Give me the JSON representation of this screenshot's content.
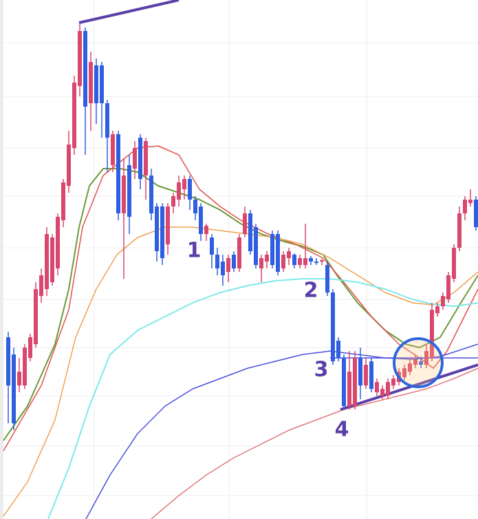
{
  "chart_data": {
    "type": "candlestick",
    "xlim": [
      0,
      695
    ],
    "ylim": [
      0,
      754
    ],
    "xticks": [
      137,
      333,
      533
    ],
    "yticks": [
      34,
      106,
      179,
      249,
      319,
      394,
      469,
      539,
      614,
      692
    ],
    "grid": true,
    "up_color": "#d9466e",
    "down_color": "#2f5fe0",
    "x": [
      12,
      20,
      28,
      36,
      44,
      52,
      60,
      68,
      76,
      84,
      92,
      100,
      108,
      116,
      124,
      132,
      140,
      148,
      156,
      164,
      172,
      180,
      188,
      196,
      204,
      212,
      220,
      228,
      236,
      244,
      252,
      260,
      268,
      276,
      284,
      292,
      300,
      308,
      316,
      324,
      332,
      340,
      348,
      356,
      364,
      372,
      380,
      388,
      396,
      404,
      412,
      420,
      428,
      436,
      444,
      452,
      460,
      468,
      476,
      484,
      492,
      500,
      508,
      516,
      524,
      532,
      540,
      548,
      556,
      564,
      572,
      580,
      588,
      596,
      604,
      612,
      620,
      628,
      636,
      644,
      652,
      660,
      668,
      676,
      684,
      692
    ],
    "ohlc": [
      [
        264,
        272,
        139,
        194
      ],
      [
        239,
        249,
        129,
        139
      ],
      [
        194,
        234,
        184,
        214
      ],
      [
        194,
        254,
        189,
        249
      ],
      [
        234,
        269,
        229,
        264
      ],
      [
        254,
        344,
        249,
        334
      ],
      [
        324,
        364,
        314,
        354
      ],
      [
        334,
        424,
        324,
        414
      ],
      [
        344,
        414,
        339,
        409
      ],
      [
        364,
        444,
        354,
        439
      ],
      [
        434,
        494,
        424,
        489
      ],
      [
        484,
        564,
        474,
        544
      ],
      [
        539,
        644,
        529,
        634
      ],
      [
        629,
        719,
        614,
        709
      ],
      [
        709,
        714,
        529,
        599
      ],
      [
        604,
        679,
        564,
        664
      ],
      [
        659,
        669,
        574,
        604
      ],
      [
        659,
        664,
        554,
        604
      ],
      [
        604,
        609,
        504,
        554
      ],
      [
        514,
        564,
        504,
        559
      ],
      [
        559,
        564,
        434,
        444
      ],
      [
        444,
        524,
        349,
        499
      ],
      [
        514,
        529,
        414,
        439
      ],
      [
        509,
        549,
        494,
        539
      ],
      [
        554,
        559,
        479,
        494
      ],
      [
        499,
        554,
        464,
        549
      ],
      [
        499,
        509,
        434,
        444
      ],
      [
        454,
        459,
        374,
        389
      ],
      [
        454,
        459,
        369,
        379
      ],
      [
        399,
        459,
        384,
        454
      ],
      [
        454,
        474,
        444,
        469
      ],
      [
        464,
        499,
        454,
        489
      ],
      [
        479,
        499,
        464,
        494
      ],
      [
        494,
        499,
        449,
        464
      ],
      [
        464,
        469,
        434,
        444
      ],
      [
        454,
        459,
        404,
        414
      ],
      [
        414,
        429,
        404,
        426
      ],
      [
        409,
        414,
        364,
        384
      ],
      [
        384,
        394,
        354,
        364
      ],
      [
        374,
        384,
        339,
        354
      ],
      [
        359,
        384,
        344,
        379
      ],
      [
        384,
        389,
        359,
        364
      ],
      [
        364,
        414,
        359,
        409
      ],
      [
        414,
        454,
        409,
        444
      ],
      [
        444,
        449,
        384,
        389
      ],
      [
        424,
        429,
        364,
        369
      ],
      [
        364,
        384,
        344,
        379
      ],
      [
        374,
        389,
        364,
        384
      ],
      [
        414,
        419,
        364,
        369
      ],
      [
        414,
        419,
        354,
        359
      ],
      [
        364,
        389,
        359,
        384
      ],
      [
        379,
        394,
        369,
        389
      ],
      [
        384,
        386,
        364,
        369
      ],
      [
        369,
        384,
        364,
        379
      ],
      [
        369,
        429,
        364,
        379
      ],
      [
        379,
        382,
        369,
        374
      ],
      [
        374,
        379,
        369,
        372
      ],
      [
        374,
        378,
        369,
        376
      ],
      [
        369,
        374,
        324,
        329
      ],
      [
        329,
        334,
        224,
        229
      ],
      [
        259,
        264,
        229,
        234
      ],
      [
        234,
        239,
        159,
        164
      ],
      [
        164,
        244,
        159,
        214
      ],
      [
        164,
        244,
        159,
        234
      ],
      [
        234,
        249,
        174,
        194
      ],
      [
        194,
        234,
        189,
        224
      ],
      [
        229,
        234,
        184,
        189
      ],
      [
        184,
        204,
        179,
        199
      ],
      [
        179,
        194,
        174,
        189
      ],
      [
        179,
        204,
        174,
        199
      ],
      [
        194,
        209,
        189,
        204
      ],
      [
        199,
        219,
        194,
        214
      ],
      [
        206,
        224,
        202,
        219
      ],
      [
        214,
        234,
        209,
        226
      ],
      [
        224,
        239,
        219,
        232
      ],
      [
        229,
        236,
        219,
        224
      ],
      [
        224,
        254,
        219,
        244
      ],
      [
        234,
        314,
        229,
        304
      ],
      [
        299,
        314,
        294,
        309
      ],
      [
        309,
        329,
        304,
        324
      ],
      [
        319,
        359,
        314,
        354
      ],
      [
        349,
        399,
        344,
        394
      ],
      [
        394,
        454,
        389,
        444
      ],
      [
        444,
        469,
        434,
        464
      ],
      [
        459,
        479,
        454,
        464
      ],
      [
        464,
        469,
        419,
        424
      ]
    ],
    "lines": [
      {
        "color": "#6a9a3a",
        "width": 2,
        "x": [
          5,
          40,
          80,
          100,
          115,
          130,
          150,
          175,
          200,
          230,
          260,
          290,
          320,
          350,
          380,
          410,
          440,
          470,
          490,
          520,
          560,
          590,
          610,
          640,
          670,
          695
        ],
        "values": [
          114,
          164,
          254,
          334,
          424,
          484,
          509,
          509,
          504,
          484,
          474,
          464,
          449,
          429,
          414,
          404,
          396,
          384,
          354,
          314,
          274,
          254,
          249,
          264,
          314,
          354
        ]
      },
      {
        "color": "#e0504a",
        "width": 1.5,
        "x": [
          5,
          60,
          100,
          120,
          150,
          200,
          230,
          260,
          290,
          320,
          350,
          390,
          430,
          470,
          500,
          540,
          580,
          610,
          630,
          650,
          675,
          695
        ],
        "values": [
          99,
          194,
          304,
          424,
          499,
          539,
          542,
          529,
          479,
          454,
          434,
          414,
          399,
          379,
          344,
          294,
          254,
          234,
          219,
          244,
          294,
          334
        ]
      },
      {
        "color": "#f0a050",
        "width": 1.5,
        "x": [
          5,
          40,
          80,
          110,
          140,
          170,
          200,
          240,
          280,
          320,
          360,
          400,
          440,
          480,
          520,
          560,
          600,
          630,
          660,
          695
        ],
        "values": [
          4,
          54,
          144,
          264,
          334,
          384,
          409,
          424,
          424,
          419,
          414,
          409,
          399,
          379,
          354,
          329,
          314,
          311,
          329,
          359
        ]
      },
      {
        "color": "#7fe8ea",
        "width": 2,
        "x": [
          70,
          100,
          130,
          160,
          200,
          240,
          280,
          320,
          360,
          400,
          440,
          480,
          520,
          560,
          600,
          630,
          660,
          695
        ],
        "values": [
          0,
          74,
          164,
          239,
          274,
          294,
          314,
          329,
          339,
          346,
          349,
          349,
          344,
          334,
          319,
          312,
          309,
          314
        ]
      },
      {
        "color": "#4a4ee0",
        "width": 1.5,
        "x": [
          125,
          160,
          200,
          240,
          280,
          320,
          360,
          400,
          440,
          480,
          520,
          560,
          600,
          640,
          695
        ],
        "values": [
          0,
          64,
          124,
          164,
          189,
          204,
          219,
          229,
          239,
          244,
          239,
          234,
          232,
          236,
          254
        ]
      },
      {
        "color": "#e07a80",
        "width": 1.5,
        "x": [
          220,
          260,
          300,
          340,
          380,
          420,
          460,
          500,
          540,
          580,
          620,
          660,
          695
        ],
        "values": [
          0,
          34,
          64,
          89,
          109,
          129,
          144,
          159,
          169,
          179,
          189,
          204,
          219
        ]
      },
      {
        "color": "#4a4ee0",
        "width": 1.5,
        "x": [
          480,
          695
        ],
        "values": [
          234,
          234
        ]
      },
      {
        "color": "#5b3fa8",
        "width": 4,
        "x": [
          115,
          260
        ],
        "values": [
          721,
          754
        ]
      },
      {
        "color": "#5b3fa8",
        "width": 4,
        "x": [
          495,
          695
        ],
        "values": [
          159,
          224
        ]
      }
    ],
    "highlight": {
      "x": 608,
      "y": 227,
      "color": "#2f66e0"
    },
    "annotations": [
      {
        "text": "1",
        "x": 282,
        "y": 389
      },
      {
        "text": "2",
        "x": 452,
        "y": 331
      },
      {
        "text": "3",
        "x": 467,
        "y": 216
      },
      {
        "text": "4",
        "x": 497,
        "y": 129
      }
    ]
  }
}
